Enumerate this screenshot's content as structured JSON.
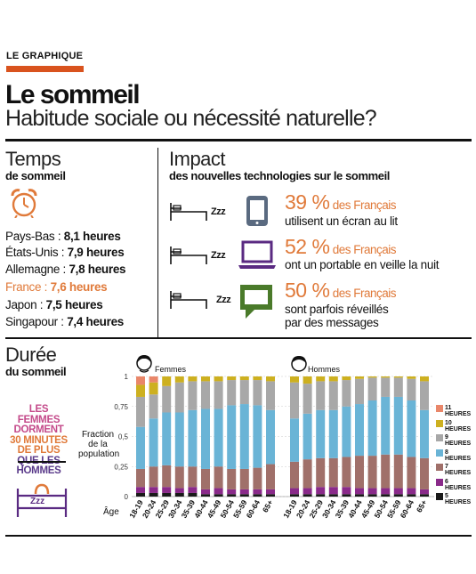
{
  "header": {
    "tag": "LE GRAPHIQUE",
    "title": "Le sommeil",
    "subtitle": "Habitude sociale ou nécessité naturelle?"
  },
  "temps": {
    "title": "Temps",
    "subtitle": "de sommeil",
    "countries": [
      {
        "name": "Pays-Bas : ",
        "value": "8,1 heures",
        "highlight": false
      },
      {
        "name": "États-Unis : ",
        "value": "7,9 heures",
        "highlight": false
      },
      {
        "name": "Allemagne : ",
        "value": "7,8 heures",
        "highlight": false
      },
      {
        "name": "France : ",
        "value": "7,6 heures",
        "highlight": true
      },
      {
        "name": "Japon : ",
        "value": "7,5 heures",
        "highlight": false
      },
      {
        "name": "Singapour : ",
        "value": "7,4 heures",
        "highlight": false
      }
    ],
    "highlight_color": "#e07a3a"
  },
  "impact": {
    "title": "Impact",
    "subtitle": "des nouvelles technologies sur le sommeil",
    "zzz": "Zzz",
    "items": [
      {
        "pct": "39 %",
        "pct_tail": " des Français",
        "desc": "utilisent un écran au lit",
        "icon": "tablet-icon"
      },
      {
        "pct": "52 %",
        "pct_tail": " des Français",
        "desc": "ont un portable en veille la nuit",
        "icon": "laptop-icon"
      },
      {
        "pct": "50 %",
        "pct_tail": " des Français",
        "desc": "sont parfois réveillés\npar des messages",
        "icon": "message-icon"
      }
    ]
  },
  "duree": {
    "title": "Durée",
    "subtitle": "du sommeil",
    "women_msg": [
      "LES FEMMES",
      "DORMENT",
      "30 MINUTES",
      "DE PLUS",
      "QUE LES",
      "HOMMES"
    ],
    "zzz": "Zzz",
    "fraction_label": "Fraction de la population",
    "age_label": "Âge"
  },
  "chart_data": {
    "type": "bar",
    "stacked": true,
    "ylim": [
      0,
      1
    ],
    "yticks": [
      "0",
      "0,25",
      "0,5",
      "0,75",
      "1"
    ],
    "groups": [
      "Femmes",
      "Hommes"
    ],
    "categories": [
      "18-19",
      "20-24",
      "25-29",
      "30-34",
      "35-39",
      "40-44",
      "45-49",
      "50-54",
      "55-59",
      "60-64",
      "65+"
    ],
    "series": [
      {
        "name": "5 HEURES",
        "color": "#1a1a1a"
      },
      {
        "name": "6 HEURES",
        "color": "#8a2a8a"
      },
      {
        "name": "7 HEURES",
        "color": "#a0706a"
      },
      {
        "name": "8 HEURES",
        "color": "#6ab4d6"
      },
      {
        "name": "9 HEURES",
        "color": "#a8a8a8"
      },
      {
        "name": "10 HEURES",
        "color": "#cdb020"
      },
      {
        "name": "11 HEURES",
        "color": "#e9876a"
      }
    ],
    "values": {
      "Femmes": [
        [
          0.03,
          0.05,
          0.15,
          0.35,
          0.25,
          0.1,
          0.07
        ],
        [
          0.03,
          0.05,
          0.17,
          0.4,
          0.2,
          0.1,
          0.05
        ],
        [
          0.03,
          0.05,
          0.18,
          0.44,
          0.22,
          0.08,
          0.0
        ],
        [
          0.03,
          0.04,
          0.18,
          0.45,
          0.25,
          0.05,
          0.0
        ],
        [
          0.03,
          0.05,
          0.17,
          0.47,
          0.24,
          0.04,
          0.0
        ],
        [
          0.02,
          0.04,
          0.17,
          0.5,
          0.23,
          0.04,
          0.0
        ],
        [
          0.02,
          0.05,
          0.18,
          0.48,
          0.23,
          0.04,
          0.0
        ],
        [
          0.02,
          0.04,
          0.17,
          0.53,
          0.21,
          0.03,
          0.0
        ],
        [
          0.02,
          0.04,
          0.17,
          0.54,
          0.2,
          0.03,
          0.0
        ],
        [
          0.02,
          0.04,
          0.18,
          0.52,
          0.21,
          0.03,
          0.0
        ],
        [
          0.02,
          0.04,
          0.21,
          0.45,
          0.24,
          0.04,
          0.0
        ]
      ],
      "Hommes": [
        [
          0.02,
          0.05,
          0.22,
          0.36,
          0.3,
          0.05,
          0.0
        ],
        [
          0.02,
          0.05,
          0.24,
          0.38,
          0.25,
          0.06,
          0.0
        ],
        [
          0.02,
          0.06,
          0.24,
          0.4,
          0.24,
          0.04,
          0.0
        ],
        [
          0.02,
          0.06,
          0.24,
          0.4,
          0.24,
          0.04,
          0.0
        ],
        [
          0.02,
          0.06,
          0.25,
          0.42,
          0.22,
          0.03,
          0.0
        ],
        [
          0.02,
          0.05,
          0.27,
          0.43,
          0.21,
          0.02,
          0.0
        ],
        [
          0.02,
          0.05,
          0.27,
          0.46,
          0.19,
          0.01,
          0.0
        ],
        [
          0.02,
          0.05,
          0.28,
          0.48,
          0.16,
          0.01,
          0.0
        ],
        [
          0.02,
          0.05,
          0.28,
          0.48,
          0.16,
          0.01,
          0.0
        ],
        [
          0.02,
          0.05,
          0.26,
          0.47,
          0.18,
          0.02,
          0.0
        ],
        [
          0.02,
          0.04,
          0.26,
          0.4,
          0.24,
          0.04,
          0.0
        ]
      ]
    },
    "legend_position": "right"
  }
}
